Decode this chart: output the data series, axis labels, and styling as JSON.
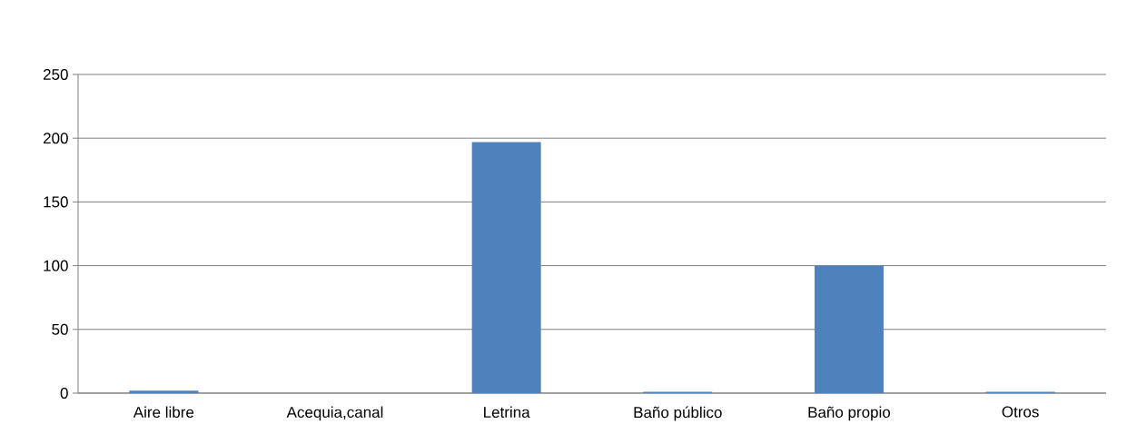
{
  "chart_data": {
    "type": "bar",
    "categories": [
      "Aire libre",
      "Acequia,canal",
      "Letrina",
      "Baño público",
      "Baño propio",
      "Otros"
    ],
    "values": [
      2,
      0,
      197,
      1,
      100,
      1
    ],
    "color": "#4f81bd",
    "ylim": [
      0,
      250
    ],
    "yticks": [
      0,
      50,
      100,
      150,
      200,
      250
    ],
    "grid": "y"
  }
}
